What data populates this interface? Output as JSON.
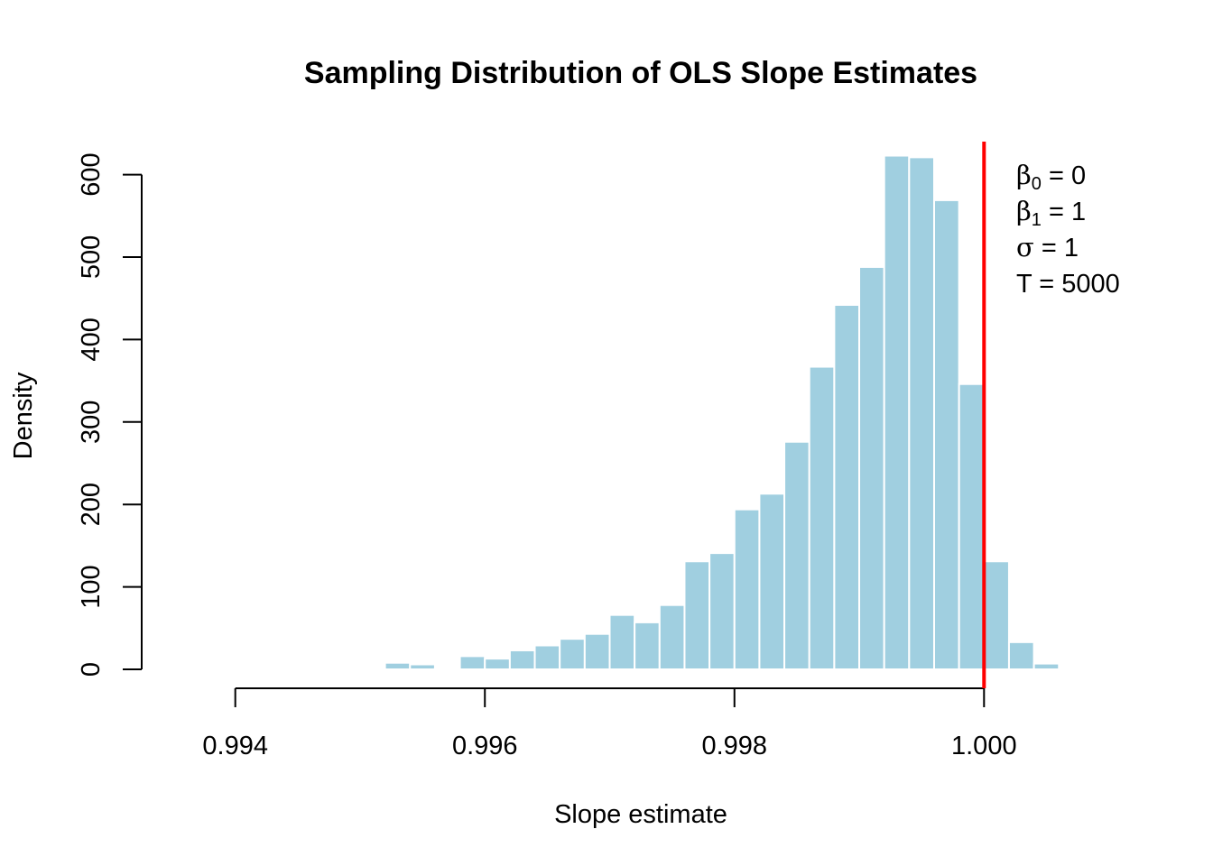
{
  "chart_data": {
    "type": "bar",
    "title": "Sampling Distribution of OLS Slope Estimates",
    "xlabel": "Slope estimate",
    "ylabel": "Density",
    "xlim": [
      0.99325,
      1.00075
    ],
    "ylim": [
      0,
      640
    ],
    "x_ticks": [
      0.994,
      0.996,
      0.998,
      1.0
    ],
    "x_tick_labels": [
      "0.994",
      "0.996",
      "0.998",
      "1.000"
    ],
    "y_ticks": [
      0,
      100,
      200,
      300,
      400,
      500,
      600
    ],
    "y_tick_labels": [
      "0",
      "100",
      "200",
      "300",
      "400",
      "500",
      "600"
    ],
    "bin_width": 0.0002,
    "bin_edges_start": 0.9948,
    "values": [
      2,
      0,
      8,
      6,
      2,
      16,
      13,
      23,
      29,
      37,
      43,
      66,
      57,
      78,
      131,
      141,
      194,
      213,
      276,
      367,
      442,
      488,
      623,
      621,
      569,
      346,
      131,
      33,
      7
    ],
    "bar_color": "#a0cfe0",
    "bar_edge_color": "#ffffff",
    "vline": {
      "x": 1.0,
      "color": "#ff0000"
    },
    "grid": false,
    "legend_position": "top-right",
    "annotations": [
      {
        "symbol": "β",
        "sub": "0",
        "text": " = 0"
      },
      {
        "symbol": "β",
        "sub": "1",
        "text": " = 1"
      },
      {
        "symbol": "σ",
        "sub": "",
        "text": " = 1"
      },
      {
        "symbol": "",
        "sub": "",
        "text": "T = 5000"
      }
    ]
  }
}
